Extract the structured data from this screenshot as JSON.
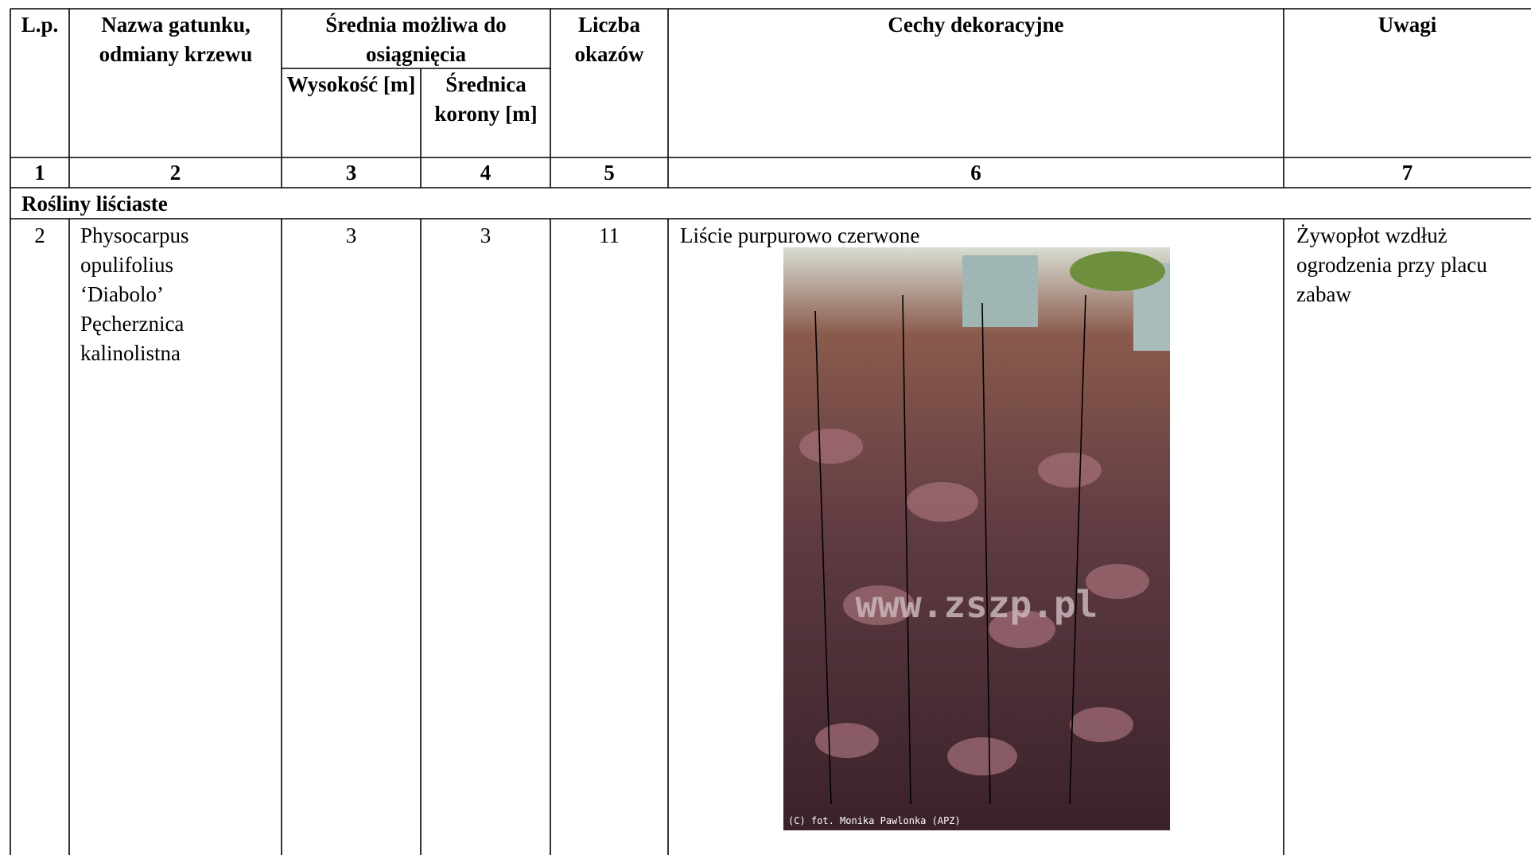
{
  "table": {
    "header": {
      "lp": "L.p.",
      "name": "Nazwa gatunku, odmiany krzewu",
      "average": "Średnia możliwa do osiągnięcia",
      "height": "Wysokość [m]",
      "crown": "Średnica korony [m]",
      "count": "Liczba okazów",
      "features": "Cechy dekoracyjne",
      "notes": "Uwagi"
    },
    "column_numbers": [
      "1",
      "2",
      "3",
      "4",
      "5",
      "6",
      "7"
    ],
    "section": "Rośliny liściaste",
    "rows": [
      [
        "2",
        "Physocarpus opulifolius ‘Diabolo’ Pęcherznica kalinolistna",
        "3",
        "3",
        "11",
        "Liście purpurowo czerwone",
        "Żywopłot wzdłuż ogrodzenia przy placu zabaw"
      ]
    ],
    "photo": {
      "watermark": "www.zszp.pl",
      "credit": "(C) fot. Monika Pawlonka (APZ)"
    }
  }
}
